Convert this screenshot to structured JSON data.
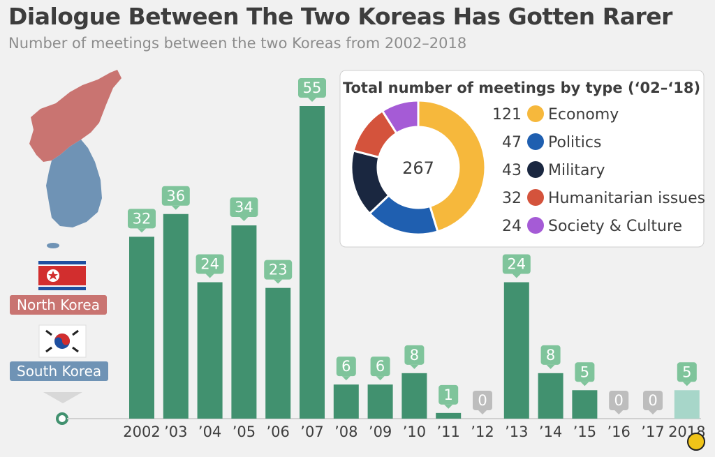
{
  "title": "Dialogue Between The Two Koreas Has Gotten Rarer",
  "subtitle": "Number of meetings between the two Koreas from 2002–2018",
  "labels": {
    "north_korea": "North Korea",
    "south_korea": "South Korea"
  },
  "colors": {
    "bar": "#41916f",
    "bar_partial": "#a7d6c9",
    "label_box": "#7fc49b",
    "label_zero": "#bdbdbd",
    "north_korea": "#c97471",
    "south_korea": "#6f93b5"
  },
  "chart_data": [
    {
      "type": "bar",
      "categories": [
        "2002",
        "’03",
        "’04",
        "’05",
        "’06",
        "’07",
        "’08",
        "’09",
        "’10",
        "’11",
        "’12",
        "’13",
        "’14",
        "’15",
        "’16",
        "’17",
        "2018"
      ],
      "values": [
        32,
        36,
        24,
        34,
        23,
        55,
        6,
        6,
        8,
        1,
        0,
        24,
        8,
        5,
        0,
        0,
        5
      ],
      "ylim": [
        0,
        60
      ]
    },
    {
      "type": "pie",
      "title": "Total number of meetings by type (‘02–‘18)",
      "center_label": "267",
      "slices": [
        {
          "label": "Economy",
          "value": 121,
          "color": "#f6b83c"
        },
        {
          "label": "Politics",
          "value": 47,
          "color": "#1f5fb0"
        },
        {
          "label": "Military",
          "value": 43,
          "color": "#1a2740"
        },
        {
          "label": "Humanitarian issues",
          "value": 32,
          "color": "#d4533c"
        },
        {
          "label": "Society & Culture",
          "value": 24,
          "color": "#a55bd6"
        }
      ]
    }
  ]
}
